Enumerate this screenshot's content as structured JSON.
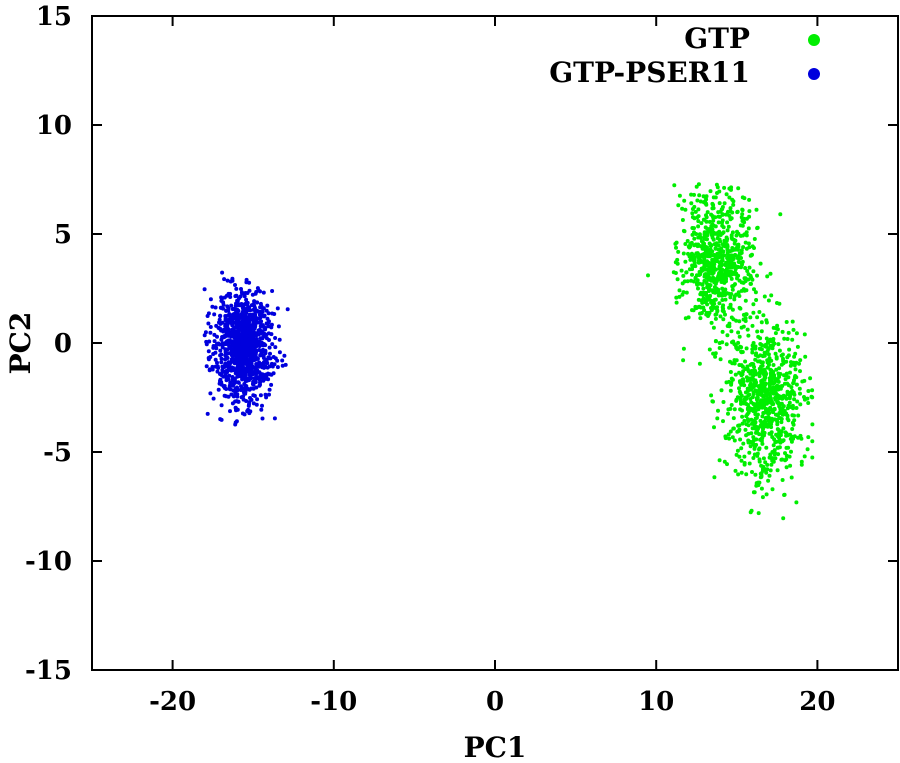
{
  "chart_data": {
    "type": "scatter",
    "xlabel": "PC1",
    "ylabel": "PC2",
    "xlim": [
      -25,
      25
    ],
    "ylim": [
      -15,
      15
    ],
    "xticks": [
      -20,
      -10,
      0,
      10,
      20
    ],
    "yticks": [
      -15,
      -10,
      -5,
      0,
      5,
      10,
      15
    ],
    "xtick_labels": [
      "-20",
      "-10",
      "0",
      "10",
      "20"
    ],
    "ytick_labels": [
      "-15",
      "-10",
      "-5",
      "0",
      "5",
      "10",
      "15"
    ],
    "grid": false,
    "legend_position": "top-right",
    "series": [
      {
        "name": "GTP",
        "color": "#00ee00",
        "clusters": [
          {
            "center": [
              13.8,
              3.8
            ],
            "spread": [
              1.1,
              1.7
            ],
            "count": 750
          },
          {
            "center": [
              16.8,
              -2.6
            ],
            "spread": [
              1.2,
              1.8
            ],
            "count": 800
          }
        ],
        "x_range": [
          9.2,
          20.2
        ],
        "y_range": [
          -8.2,
          7.3
        ]
      },
      {
        "name": "GTP-PSER11",
        "color": "#0000dd",
        "clusters": [
          {
            "center": [
              -15.6,
              -0.2
            ],
            "spread": [
              0.9,
              1.3
            ],
            "count": 1100
          }
        ],
        "x_range": [
          -18.2,
          -12.8
        ],
        "y_range": [
          -4.1,
          3.6
        ]
      }
    ]
  }
}
